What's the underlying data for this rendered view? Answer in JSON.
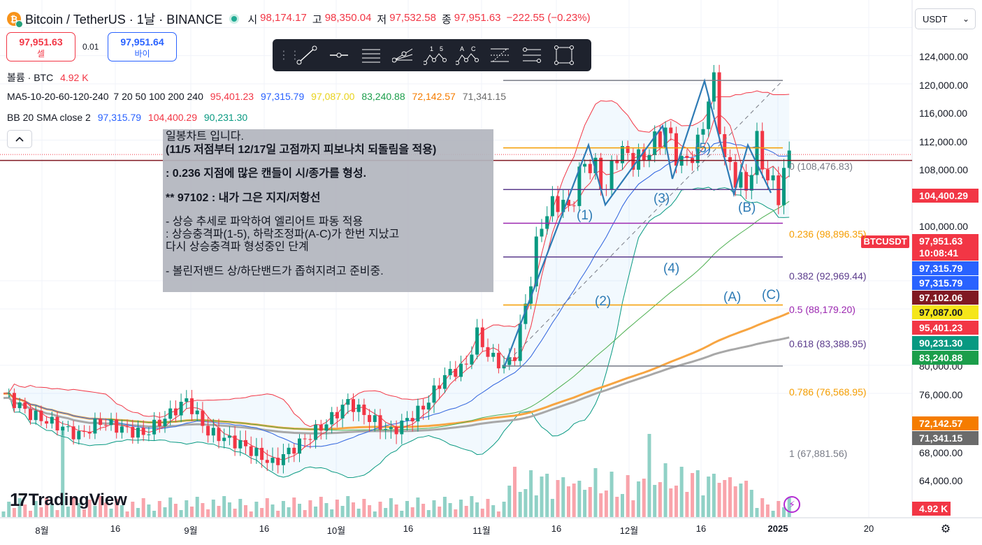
{
  "header": {
    "symbol": "Bitcoin / TetherUS · 1날 · BINANCE",
    "open_label": "시",
    "open": "98,174.17",
    "high_label": "고",
    "high": "98,350.04",
    "low_label": "저",
    "low": "97,532.58",
    "close_label": "종",
    "close": "97,951.63",
    "change": "−222.55 (−0.23%)"
  },
  "trade": {
    "sell_price": "97,951.63",
    "sell_label": "셀",
    "spread": "0.01",
    "buy_price": "97,951.64",
    "buy_label": "바이"
  },
  "indicators": {
    "volume_name": "볼륨 · BTC",
    "volume_value": "4.92 K",
    "ma_name": "MA5-10-20-60-120-240",
    "ma_params": "7 20 50 100 200 240",
    "ma_values": [
      "95,401.23",
      "97,315.79",
      "97,087.00",
      "83,240.88",
      "72,142.57",
      "71,341.15"
    ],
    "bb_name": "BB 20 SMA close 2",
    "bb_values": [
      "97,315.79",
      "104,400.29",
      "90,231.30"
    ]
  },
  "note": {
    "lines": [
      "일봉차트 입니다.",
      "(11/5 저점부터 12/17일 고점까지 피보나치 되돌림을 적용)",
      ": 0.236 지점에 많은 캔들이 시/종가를 형성.",
      "** 97102 : 내가 그은 지지/저항선",
      "- 상승 추세로 파악하여 엘리어트 파동 적용",
      ": 상승충격파(1-5), 하락조정파(A-C)가 한번 지났고",
      "다시 상승충격파 형성중인 단계",
      "- 볼린저밴드 상/하단밴드가 좁혀지려고 준비중."
    ]
  },
  "currency": "USDT",
  "y_axis": [
    "124,000.00",
    "120,000.00",
    "116,000.00",
    "112,000.00",
    "108,000.00",
    "100,000.00",
    "80,000.00",
    "76,000.00",
    "68,000.00",
    "64,000.00",
    "00"
  ],
  "x_axis": [
    "8월",
    "16",
    "9월",
    "16",
    "10월",
    "16",
    "11월",
    "16",
    "12월",
    "16",
    "2025",
    "20"
  ],
  "price_labels": {
    "bb_upper": "104,400.29",
    "last": "97,951.63",
    "countdown": "10:08:41",
    "symbol_tag": "BTCUSDT",
    "ma10": "97,315.79",
    "bb_basis": "97,315.79",
    "hline": "97,102.06",
    "ma20": "97,087.00",
    "ma5": "95,401.23",
    "bb_lower": "90,231.30",
    "ma60": "83,240.88",
    "ma120": "72,142.57",
    "ma240": "71,341.15",
    "volume": "4.92 K"
  },
  "fibonacci": [
    {
      "label": "0 (108,476.83)",
      "color": "#787b86"
    },
    {
      "label": "0.236 (98,896.35)",
      "color": "#f59d00"
    },
    {
      "label": "0.382 (92,969.44)",
      "color": "#5b3b8c"
    },
    {
      "label": "0.5 (88,179.20)",
      "color": "#9c27b0"
    },
    {
      "label": "0.618 (83,388.95)",
      "color": "#5b3b8c"
    },
    {
      "label": "0.786 (76,568.95)",
      "color": "#f59d00"
    },
    {
      "label": "1 (67,881.56)",
      "color": "#787b86"
    }
  ],
  "waves": [
    "(1)",
    "(2)",
    "(3)",
    "(4)",
    "(5)",
    "(A)",
    "(B)",
    "(C)"
  ],
  "colors": {
    "up": "#089981",
    "down": "#f23645",
    "accent": "#2962ff"
  },
  "logo": "TradingView"
}
